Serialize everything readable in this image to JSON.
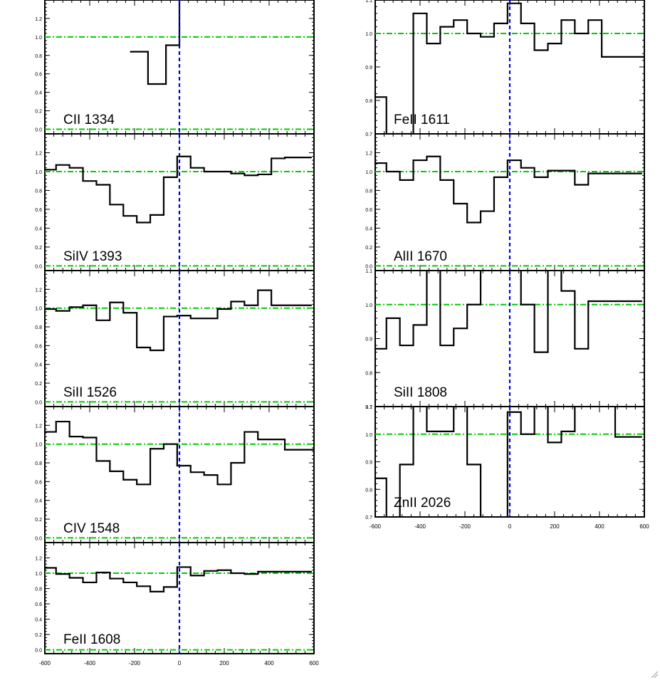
{
  "colors": {
    "line": "#000000",
    "reference": "#00cc00",
    "velocity_zero": "#0000dd",
    "background": "#ffffff"
  },
  "icons": {
    "corner": "resize-grip-icon"
  },
  "chart_data": [
    {
      "type": "line",
      "step": true,
      "label": "CII 1334",
      "xlim": [
        -600,
        600
      ],
      "ylim": [
        -0.05,
        1.4
      ],
      "yticks": [
        0.0,
        0.2,
        0.4,
        0.6,
        0.8,
        1.0,
        1.2
      ],
      "ytick_labels": [
        "0.0",
        "0.2",
        "0.4",
        "0.6",
        "0.8",
        "1.0",
        "1.2"
      ],
      "xticks": [
        -600,
        -400,
        -200,
        0,
        200,
        400,
        600
      ],
      "xtick_labels": [],
      "hlines": [
        0.0,
        1.0
      ],
      "vline": 0,
      "x": [
        -180,
        -100,
        -20,
        20
      ],
      "y": [
        0.84,
        0.49,
        0.91,
        1.5
      ]
    },
    {
      "type": "line",
      "step": true,
      "label": "SiIV 1393",
      "xlim": [
        -600,
        600
      ],
      "ylim": [
        -0.05,
        1.4
      ],
      "yticks": [
        0.0,
        0.2,
        0.4,
        0.6,
        0.8,
        1.0,
        1.2
      ],
      "ytick_labels": [
        "0.0",
        "0.2",
        "0.4",
        "0.6",
        "0.8",
        "1.0",
        "1.2"
      ],
      "xticks": [
        -600,
        -400,
        -200,
        0,
        200,
        400,
        600
      ],
      "xtick_labels": [],
      "hlines": [
        0.0,
        1.0
      ],
      "vline": 0,
      "x": [
        -580,
        -520,
        -460,
        -400,
        -340,
        -280,
        -220,
        -160,
        -100,
        -40,
        20,
        80,
        140,
        200,
        260,
        320,
        380,
        440,
        500,
        560
      ],
      "y": [
        1.02,
        1.07,
        1.04,
        0.9,
        0.86,
        0.65,
        0.53,
        0.46,
        0.54,
        0.94,
        1.16,
        1.04,
        1.0,
        1.0,
        0.98,
        0.96,
        0.97,
        1.14,
        1.15,
        1.15
      ]
    },
    {
      "type": "line",
      "step": true,
      "label": "SiII 1526",
      "xlim": [
        -600,
        600
      ],
      "ylim": [
        -0.05,
        1.4
      ],
      "yticks": [
        0.0,
        0.2,
        0.4,
        0.6,
        0.8,
        1.0,
        1.2
      ],
      "ytick_labels": [
        "0.0",
        "0.2",
        "0.4",
        "0.6",
        "0.8",
        "1.0",
        "1.2"
      ],
      "xticks": [
        -600,
        -400,
        -200,
        0,
        200,
        400,
        600
      ],
      "xtick_labels": [],
      "hlines": [
        0.0,
        1.0
      ],
      "vline": 0,
      "x": [
        -580,
        -520,
        -460,
        -400,
        -340,
        -280,
        -220,
        -160,
        -100,
        -40,
        20,
        80,
        140,
        200,
        260,
        320,
        380,
        440,
        500,
        560
      ],
      "y": [
        0.99,
        0.97,
        1.01,
        1.03,
        0.87,
        1.06,
        0.95,
        0.58,
        0.55,
        0.91,
        0.92,
        0.89,
        0.89,
        0.99,
        1.07,
        1.03,
        1.19,
        1.03,
        1.03,
        1.03
      ]
    },
    {
      "type": "line",
      "step": true,
      "label": "CIV 1548",
      "xlim": [
        -600,
        600
      ],
      "ylim": [
        -0.05,
        1.4
      ],
      "yticks": [
        0.0,
        0.2,
        0.4,
        0.6,
        0.8,
        1.0,
        1.2
      ],
      "ytick_labels": [
        "0.0",
        "0.2",
        "0.4",
        "0.6",
        "0.8",
        "1.0",
        "1.2"
      ],
      "xticks": [
        -600,
        -400,
        -200,
        0,
        200,
        400,
        600
      ],
      "xtick_labels": [],
      "hlines": [
        0.0,
        1.0
      ],
      "vline": 0,
      "x": [
        -580,
        -520,
        -460,
        -400,
        -340,
        -280,
        -220,
        -160,
        -100,
        -40,
        20,
        80,
        140,
        200,
        260,
        320,
        380,
        440,
        500,
        560,
        590
      ],
      "y": [
        1.13,
        1.24,
        1.08,
        1.07,
        0.82,
        0.71,
        0.62,
        0.57,
        0.95,
        1.0,
        0.77,
        0.7,
        0.67,
        0.57,
        0.8,
        1.13,
        1.05,
        1.05,
        0.94,
        0.94,
        0.94
      ]
    },
    {
      "type": "line",
      "step": true,
      "label": "FeII 1608",
      "xlim": [
        -600,
        600
      ],
      "ylim": [
        -0.05,
        1.4
      ],
      "yticks": [
        0.0,
        0.2,
        0.4,
        0.6,
        0.8,
        1.0,
        1.2
      ],
      "ytick_labels": [
        "0.0",
        "0.2",
        "0.4",
        "0.6",
        "0.8",
        "1.0",
        "1.2"
      ],
      "xticks": [
        -600,
        -400,
        -200,
        0,
        200,
        400,
        600
      ],
      "xtick_labels": [
        "-600",
        "-400",
        "-200",
        "0",
        "200",
        "400",
        "600"
      ],
      "hlines": [
        0.0,
        1.0
      ],
      "vline": 0,
      "x": [
        -580,
        -520,
        -460,
        -400,
        -340,
        -280,
        -220,
        -160,
        -100,
        -40,
        20,
        80,
        140,
        200,
        260,
        320,
        380,
        440,
        500,
        560
      ],
      "y": [
        1.07,
        0.99,
        0.94,
        0.88,
        1.01,
        0.93,
        0.88,
        0.83,
        0.76,
        0.82,
        1.08,
        0.97,
        1.03,
        1.04,
        1.0,
        0.99,
        1.02,
        1.02,
        1.02,
        1.02
      ]
    },
    {
      "type": "line",
      "step": true,
      "label": "FeII 1611",
      "xlim": [
        -600,
        600
      ],
      "ylim": [
        0.7,
        1.1
      ],
      "yticks": [
        0.7,
        0.8,
        0.9,
        1.0,
        1.1
      ],
      "ytick_labels": [
        "0.7",
        "0.8",
        "0.9",
        "1.0",
        "1.1"
      ],
      "xticks": [
        -600,
        -400,
        -200,
        0,
        200,
        400,
        600
      ],
      "xtick_labels": [],
      "hlines": [
        1.0
      ],
      "vline": 0,
      "x": [
        -580,
        -520,
        -460,
        -400,
        -340,
        -280,
        -220,
        -160,
        -100,
        -40,
        20,
        80,
        140,
        200,
        260,
        320,
        380,
        440,
        500,
        560,
        590
      ],
      "y": [
        0.81,
        0.7,
        0.7,
        1.06,
        0.97,
        1.02,
        1.04,
        1.0,
        0.99,
        1.03,
        1.09,
        1.03,
        0.95,
        0.97,
        1.04,
        1.0,
        1.04,
        0.93,
        0.93,
        0.93,
        0.93
      ]
    },
    {
      "type": "line",
      "step": true,
      "label": "AlII 1670",
      "xlim": [
        -600,
        600
      ],
      "ylim": [
        -0.05,
        1.4
      ],
      "yticks": [
        0.0,
        0.2,
        0.4,
        0.6,
        0.8,
        1.0,
        1.2
      ],
      "ytick_labels": [
        "0.0",
        "0.2",
        "0.4",
        "0.6",
        "0.8",
        "1.0",
        "1.2"
      ],
      "xticks": [
        -600,
        -400,
        -200,
        0,
        200,
        400,
        600
      ],
      "xtick_labels": [],
      "hlines": [
        0.0,
        1.0
      ],
      "vline": 0,
      "x": [
        -580,
        -520,
        -460,
        -400,
        -340,
        -280,
        -220,
        -160,
        -100,
        -40,
        20,
        80,
        140,
        200,
        260,
        320,
        380,
        440,
        500,
        560
      ],
      "y": [
        1.09,
        1.0,
        0.91,
        1.12,
        1.16,
        0.91,
        0.66,
        0.46,
        0.58,
        0.94,
        1.12,
        1.04,
        0.94,
        1.01,
        1.01,
        0.86,
        0.98,
        0.98,
        0.98,
        0.98
      ]
    },
    {
      "type": "line",
      "step": true,
      "label": "SiII 1808",
      "xlim": [
        -600,
        600
      ],
      "ylim": [
        0.7,
        1.1
      ],
      "yticks": [
        0.7,
        0.8,
        0.9,
        1.0,
        1.1
      ],
      "ytick_labels": [
        "0.7",
        "0.8",
        "0.9",
        "1.0",
        "1.1"
      ],
      "xticks": [
        -600,
        -400,
        -200,
        0,
        200,
        400,
        600
      ],
      "xtick_labels": [],
      "hlines": [
        1.0
      ],
      "vline": 0,
      "x": [
        -580,
        -520,
        -460,
        -400,
        -340,
        -280,
        -220,
        -160,
        -100,
        -40,
        20,
        80,
        140,
        200,
        260,
        320,
        380,
        440,
        500,
        560
      ],
      "y": [
        0.87,
        0.96,
        0.88,
        0.94,
        1.12,
        0.88,
        0.93,
        1.0,
        1.12,
        1.12,
        1.12,
        1.0,
        0.86,
        1.14,
        1.04,
        0.87,
        1.01,
        1.01,
        1.01,
        1.01
      ]
    },
    {
      "type": "line",
      "step": true,
      "label": "ZnII 2026",
      "xlim": [
        -600,
        600
      ],
      "ylim": [
        0.7,
        1.1
      ],
      "yticks": [
        0.7,
        0.8,
        0.9,
        1.0,
        1.1
      ],
      "ytick_labels": [
        "0.7",
        "0.8",
        "0.9",
        "1.0",
        "1.1"
      ],
      "xticks": [
        -600,
        -400,
        -200,
        0,
        200,
        400,
        600
      ],
      "xtick_labels": [
        "-600",
        "-400",
        "-200",
        "0",
        "200",
        "400",
        "600"
      ],
      "hlines": [
        1.0
      ],
      "vline": 0,
      "x": [
        -580,
        -520,
        -460,
        -400,
        -340,
        -280,
        -220,
        -160,
        -100,
        -40,
        20,
        80,
        140,
        200,
        260,
        320,
        380,
        440,
        500,
        560
      ],
      "y": [
        0.84,
        0.6,
        0.89,
        1.15,
        1.01,
        1.01,
        1.15,
        0.89,
        0.6,
        0.6,
        1.08,
        1.0,
        1.15,
        0.97,
        1.01,
        1.15,
        1.15,
        1.15,
        0.99,
        0.99
      ]
    }
  ]
}
